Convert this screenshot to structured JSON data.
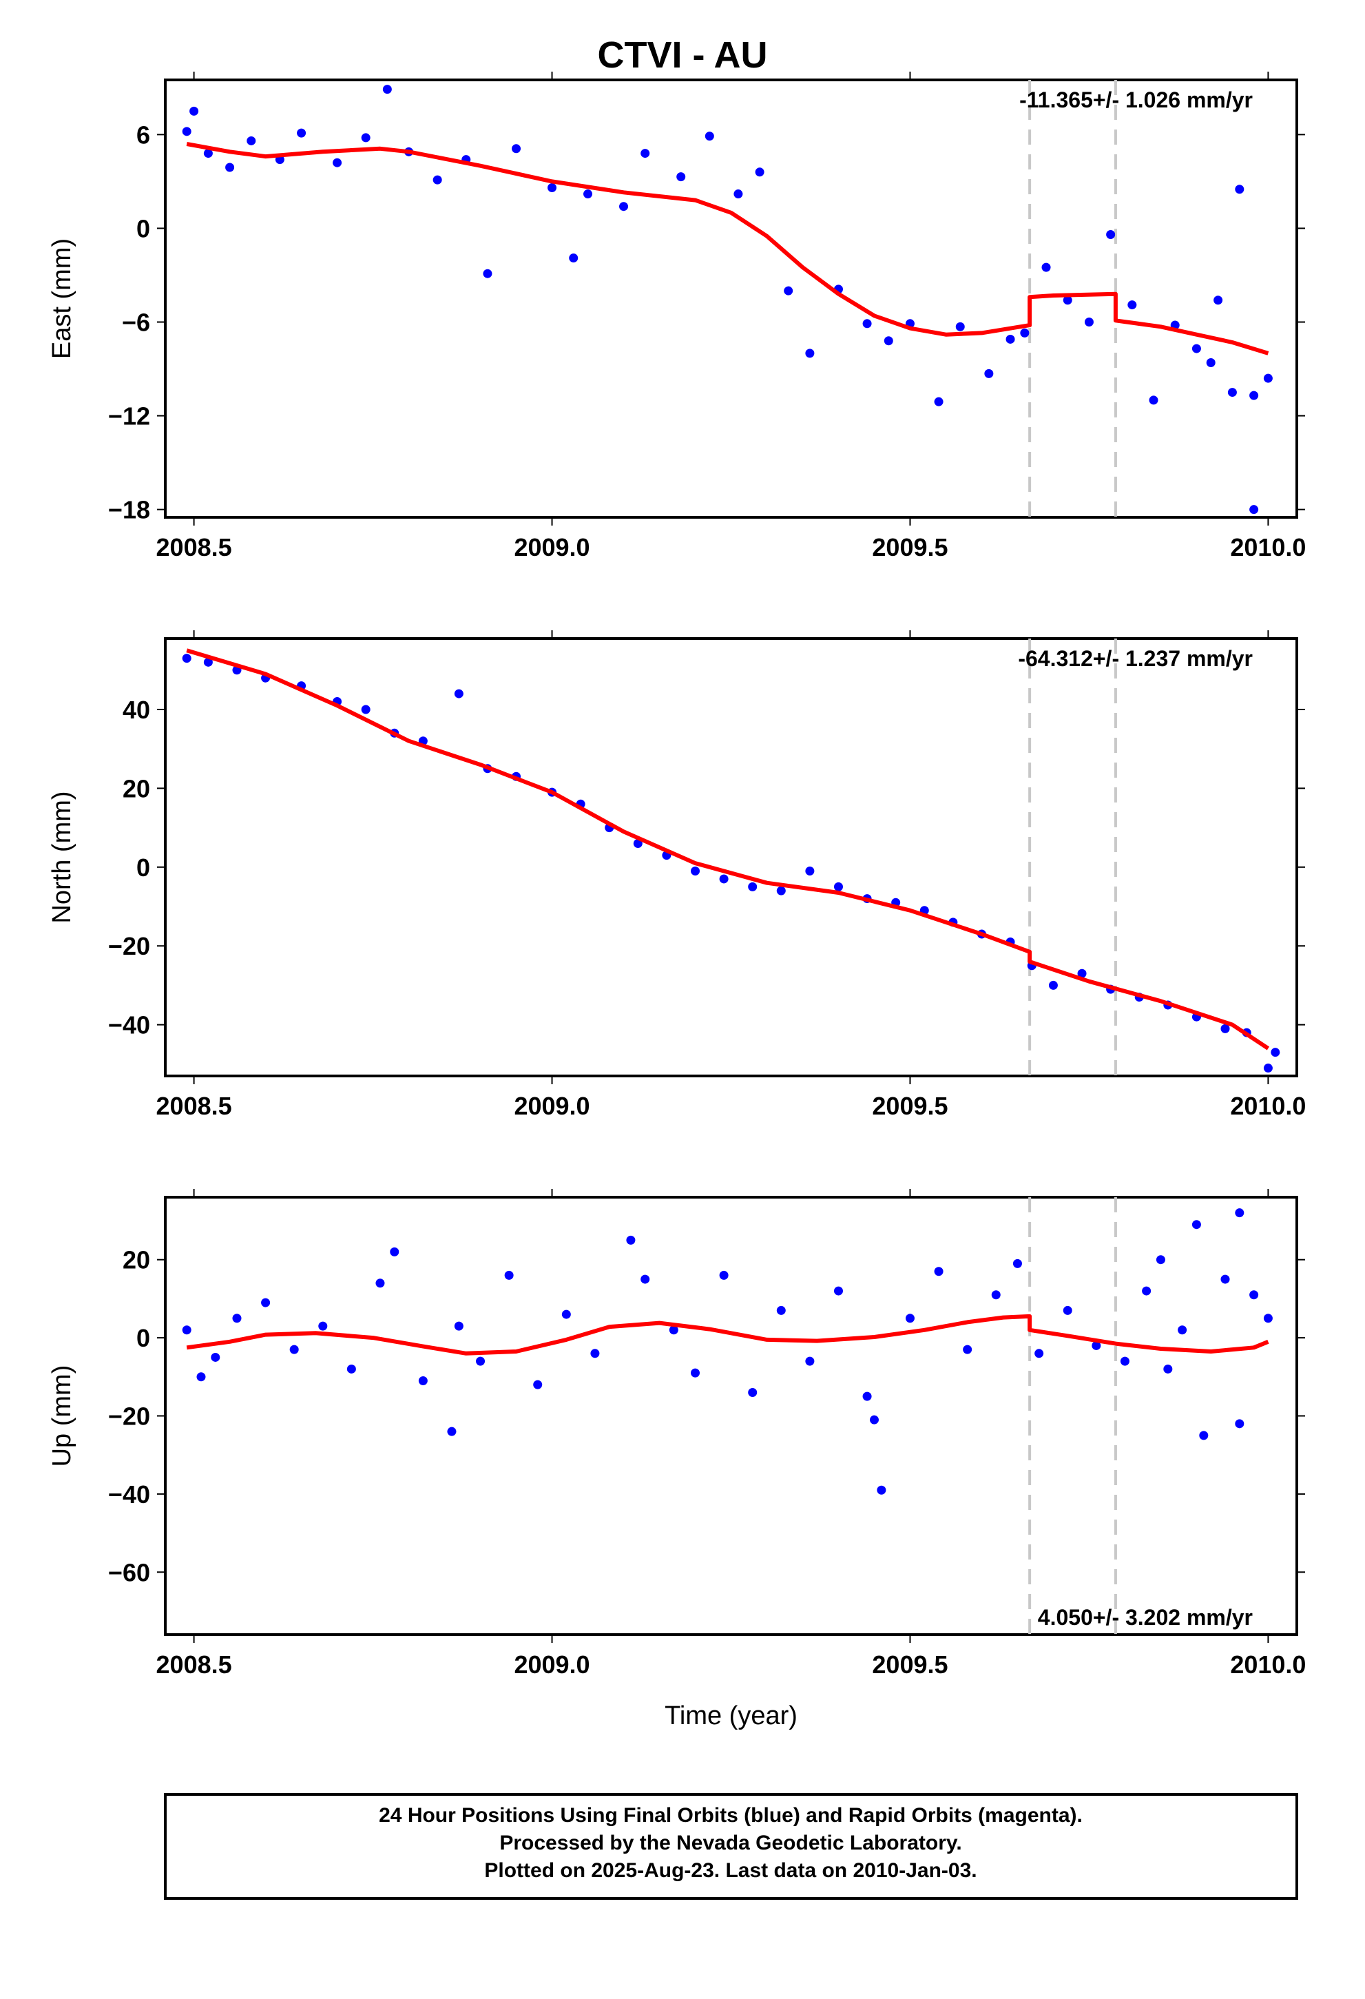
{
  "title": "CTVI - AU",
  "colors": {
    "final_orbits": "#0000ff",
    "model": "#ff0000",
    "event_line": "#c8c8c8",
    "frame": "#000000"
  },
  "footer": {
    "line1": "24 Hour Positions Using Final Orbits (blue) and Rapid Orbits (magenta).",
    "line2": "Processed by the Nevada Geodetic Laboratory.",
    "line3": "Plotted on 2025-Aug-23. Last data on 2010-Jan-03."
  },
  "chart_data": [
    {
      "type": "scatter",
      "panel": "east",
      "ylabel": "East (mm)",
      "xlabel": "",
      "xlim": [
        2008.46,
        2010.04
      ],
      "ylim": [
        -18.5,
        9.5
      ],
      "xticks": [
        "2008.5",
        "2009.0",
        "2009.5",
        "2010.0"
      ],
      "yticks": [
        "6",
        "0",
        "-6",
        "-12",
        "-18"
      ],
      "rate_label": "-11.365+/- 1.026 mm/yr",
      "rate_position": "top-right",
      "event_lines_x": [
        2009.667,
        2009.787
      ],
      "series": [
        {
          "role": "model",
          "x": [
            2008.49,
            2008.55,
            2008.6,
            2008.68,
            2008.76,
            2008.8,
            2008.9,
            2009.0,
            2009.1,
            2009.2,
            2009.25,
            2009.3,
            2009.35,
            2009.4,
            2009.45,
            2009.5,
            2009.55,
            2009.6,
            2009.667,
            2009.667,
            2009.7,
            2009.787,
            2009.787,
            2009.85,
            2009.9,
            2009.95,
            2010.0
          ],
          "y": [
            5.4,
            4.9,
            4.6,
            4.9,
            5.1,
            4.9,
            4.0,
            3.0,
            2.3,
            1.8,
            1.0,
            -0.5,
            -2.5,
            -4.2,
            -5.6,
            -6.4,
            -6.8,
            -6.7,
            -6.2,
            -4.4,
            -4.3,
            -4.2,
            -5.9,
            -6.3,
            -6.8,
            -7.3,
            -8.0
          ]
        },
        {
          "role": "data",
          "x": [
            2008.49,
            2008.5,
            2008.52,
            2008.55,
            2008.58,
            2008.62,
            2008.65,
            2008.7,
            2008.74,
            2008.77,
            2008.8,
            2008.84,
            2008.88,
            2008.91,
            2008.95,
            2009.0,
            2009.03,
            2009.05,
            2009.1,
            2009.13,
            2009.18,
            2009.22,
            2009.26,
            2009.29,
            2009.33,
            2009.36,
            2009.4,
            2009.44,
            2009.47,
            2009.5,
            2009.54,
            2009.57,
            2009.61,
            2009.64,
            2009.66,
            2009.69,
            2009.72,
            2009.75,
            2009.78,
            2009.81,
            2009.84,
            2009.87,
            2009.9,
            2009.93,
            2009.96,
            2009.98,
            2010.0,
            2009.95,
            2009.92,
            2009.98
          ],
          "y": [
            6.2,
            7.5,
            4.8,
            3.9,
            5.6,
            4.4,
            6.1,
            4.2,
            5.8,
            8.9,
            4.9,
            3.1,
            4.4,
            -2.9,
            5.1,
            2.6,
            -1.9,
            2.2,
            1.4,
            4.8,
            3.3,
            5.9,
            2.2,
            3.6,
            -4.0,
            -8.0,
            -3.9,
            -6.1,
            -7.2,
            -6.1,
            -11.1,
            -6.3,
            -9.3,
            -7.1,
            -6.7,
            -2.5,
            -4.6,
            -6.0,
            -0.4,
            -4.9,
            -11.0,
            -6.2,
            -7.7,
            -4.6,
            2.5,
            -10.7,
            -9.6,
            -10.5,
            -8.6,
            -18.0
          ]
        }
      ]
    },
    {
      "type": "scatter",
      "panel": "north",
      "ylabel": "North (mm)",
      "xlabel": "",
      "xlim": [
        2008.46,
        2010.04
      ],
      "ylim": [
        -53,
        58
      ],
      "xticks": [
        "2008.5",
        "2009.0",
        "2009.5",
        "2010.0"
      ],
      "yticks": [
        "40",
        "20",
        "0",
        "-20",
        "-40"
      ],
      "rate_label": "-64.312+/- 1.237 mm/yr",
      "rate_position": "top-right",
      "event_lines_x": [
        2009.667,
        2009.787
      ],
      "series": [
        {
          "role": "model",
          "x": [
            2008.49,
            2008.6,
            2008.7,
            2008.8,
            2008.9,
            2009.0,
            2009.1,
            2009.2,
            2009.3,
            2009.4,
            2009.5,
            2009.6,
            2009.667,
            2009.667,
            2009.75,
            2009.85,
            2009.95,
            2010.0
          ],
          "y": [
            55,
            49,
            41,
            32,
            26,
            19,
            9,
            1,
            -4,
            -6.5,
            -11,
            -17,
            -21.5,
            -24,
            -29,
            -34,
            -40,
            -46
          ]
        },
        {
          "role": "data",
          "x": [
            2008.49,
            2008.52,
            2008.56,
            2008.6,
            2008.65,
            2008.7,
            2008.74,
            2008.78,
            2008.82,
            2008.87,
            2008.91,
            2008.95,
            2009.0,
            2009.04,
            2009.08,
            2009.12,
            2009.16,
            2009.2,
            2009.24,
            2009.28,
            2009.32,
            2009.36,
            2009.4,
            2009.44,
            2009.48,
            2009.52,
            2009.56,
            2009.6,
            2009.64,
            2009.67,
            2009.7,
            2009.74,
            2009.78,
            2009.82,
            2009.86,
            2009.9,
            2009.94,
            2009.97,
            2010.0,
            2010.01
          ],
          "y": [
            53,
            52,
            50,
            48,
            46,
            42,
            40,
            34,
            32,
            44,
            25,
            23,
            19,
            16,
            10,
            6,
            3,
            -1,
            -3,
            -5,
            -6,
            -1,
            -5,
            -8,
            -9,
            -11,
            -14,
            -17,
            -19,
            -25,
            -30,
            -27,
            -31,
            -33,
            -35,
            -38,
            -41,
            -42,
            -51,
            -47
          ]
        }
      ]
    },
    {
      "type": "scatter",
      "panel": "up",
      "ylabel": "Up (mm)",
      "xlabel": "Time (year)",
      "xlim": [
        2008.46,
        2010.04
      ],
      "ylim": [
        -76,
        36
      ],
      "xticks": [
        "2008.5",
        "2009.0",
        "2009.5",
        "2010.0"
      ],
      "yticks": [
        "20",
        "0",
        "-20",
        "-40",
        "-60"
      ],
      "rate_label": "4.050+/- 3.202 mm/yr",
      "rate_position": "bottom-right",
      "event_lines_x": [
        2009.667,
        2009.787
      ],
      "series": [
        {
          "role": "model",
          "x": [
            2008.49,
            2008.55,
            2008.6,
            2008.67,
            2008.75,
            2008.82,
            2008.88,
            2008.95,
            2009.02,
            2009.08,
            2009.15,
            2009.22,
            2009.3,
            2009.37,
            2009.45,
            2009.52,
            2009.58,
            2009.63,
            2009.667,
            2009.667,
            2009.72,
            2009.787,
            2009.85,
            2009.92,
            2009.98,
            2010.0
          ],
          "y": [
            -2.5,
            -1,
            0.8,
            1.2,
            0,
            -2.2,
            -4,
            -3.5,
            -0.5,
            2.8,
            3.8,
            2.2,
            -0.5,
            -0.8,
            0.2,
            2,
            4,
            5.2,
            5.5,
            2,
            0.5,
            -1.5,
            -2.8,
            -3.5,
            -2.5,
            -1
          ]
        },
        {
          "role": "data",
          "x": [
            2008.49,
            2008.51,
            2008.53,
            2008.56,
            2008.6,
            2008.64,
            2008.68,
            2008.72,
            2008.76,
            2008.78,
            2008.82,
            2008.86,
            2008.87,
            2008.9,
            2008.94,
            2008.98,
            2009.02,
            2009.06,
            2009.11,
            2009.13,
            2009.17,
            2009.2,
            2009.24,
            2009.28,
            2009.32,
            2009.36,
            2009.4,
            2009.44,
            2009.45,
            2009.46,
            2009.5,
            2009.54,
            2009.58,
            2009.62,
            2009.65,
            2009.68,
            2009.72,
            2009.76,
            2009.8,
            2009.83,
            2009.86,
            2009.88,
            2009.91,
            2009.94,
            2009.96,
            2009.98,
            2010.0,
            2009.85,
            2009.96,
            2009.9
          ],
          "y": [
            2,
            -10,
            -5,
            5,
            9,
            -3,
            3,
            -8,
            14,
            22,
            -11,
            -24,
            3,
            -6,
            16,
            -12,
            6,
            -4,
            25,
            15,
            2,
            -9,
            16,
            -14,
            7,
            -6,
            12,
            -15,
            -21,
            -39,
            5,
            17,
            -3,
            11,
            19,
            -4,
            7,
            -2,
            -6,
            12,
            -8,
            2,
            -25,
            15,
            -22,
            11,
            5,
            20,
            32,
            29
          ]
        }
      ]
    }
  ]
}
